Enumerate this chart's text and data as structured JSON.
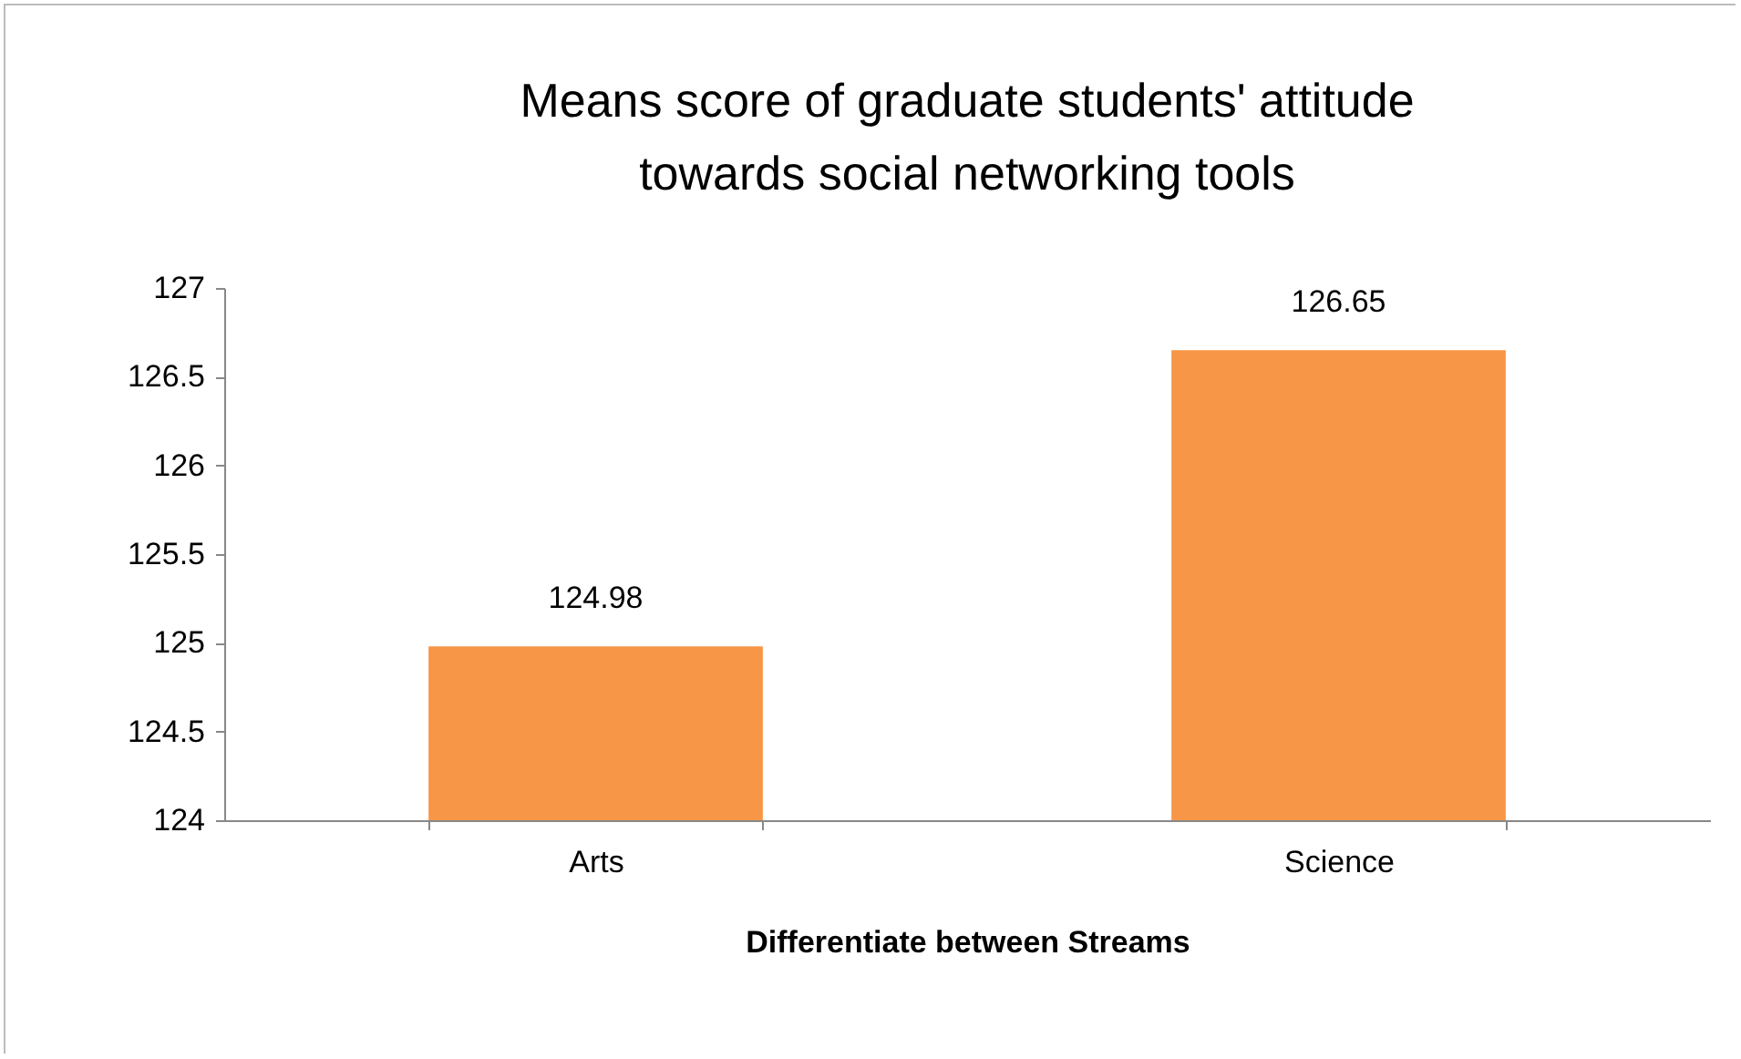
{
  "chart_data": {
    "type": "bar",
    "title": "Means score of graduate students' attitude towards social networking tools",
    "xlabel": "Differentiate between Streams",
    "categories": [
      "Arts",
      "Science"
    ],
    "values": [
      124.98,
      126.65
    ],
    "color": "#f79646",
    "ylim": [
      124,
      127
    ],
    "yticks": [
      124,
      124.5,
      125,
      125.5,
      126,
      126.5,
      127
    ],
    "data_labels": true,
    "grid": false
  }
}
